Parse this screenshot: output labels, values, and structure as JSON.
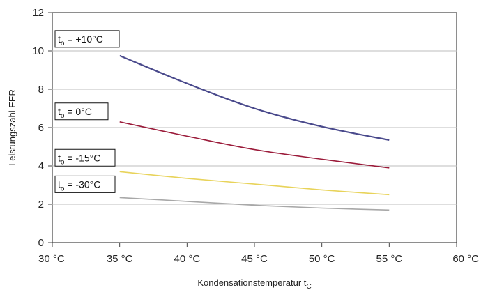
{
  "chart_data": {
    "type": "line",
    "title": "",
    "xlabel": "Kondensationstemperatur t",
    "xlabel_sub": "C",
    "ylabel": "Leistungszahl EER",
    "xlim": [
      30,
      60
    ],
    "ylim": [
      0,
      12
    ],
    "x_ticks": [
      30,
      35,
      40,
      45,
      50,
      55,
      60
    ],
    "x_tick_labels": [
      "30 °C",
      "35 °C",
      "40 °C",
      "45 °C",
      "50 °C",
      "55 °C",
      "60 °C"
    ],
    "y_ticks": [
      0,
      2,
      4,
      6,
      8,
      10,
      12
    ],
    "y_tick_labels": [
      "0",
      "2",
      "4",
      "6",
      "8",
      "10",
      "12"
    ],
    "grid": "horizontal",
    "series": [
      {
        "label_prefix": "t",
        "label_sub": "o",
        "label_value": " = +10°C",
        "color": "#4a4a8c",
        "x": [
          35,
          40,
          45,
          50,
          55
        ],
        "y": [
          9.75,
          8.3,
          7.0,
          6.05,
          5.35
        ]
      },
      {
        "label_prefix": "t",
        "label_sub": "o",
        "label_value": " =  0°C",
        "color": "#9b1b3a",
        "x": [
          35,
          40,
          45,
          50,
          55
        ],
        "y": [
          6.3,
          5.55,
          4.85,
          4.35,
          3.9
        ]
      },
      {
        "label_prefix": "t",
        "label_sub": "o",
        "label_value": " = -15°C",
        "color": "#e8d35a",
        "x": [
          35,
          40,
          45,
          50,
          55
        ],
        "y": [
          3.7,
          3.35,
          3.05,
          2.75,
          2.5
        ]
      },
      {
        "label_prefix": "t",
        "label_sub": "o",
        "label_value": " = -30°C",
        "color": "#a8a8a8",
        "x": [
          35,
          40,
          45,
          50,
          55
        ],
        "y": [
          2.35,
          2.15,
          1.95,
          1.8,
          1.7
        ]
      }
    ]
  }
}
